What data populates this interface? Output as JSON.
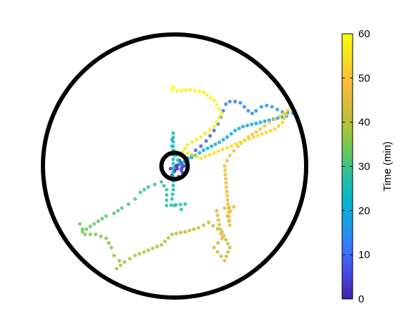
{
  "chart_data": {
    "type": "scatter",
    "title": "",
    "colorbar": {
      "label": "Time (min)",
      "range": [
        0,
        60
      ],
      "ticks": [
        0,
        10,
        20,
        30,
        40,
        50,
        60
      ],
      "colormap": [
        "#3e26a8",
        "#4744e0",
        "#3d74fb",
        "#1f9be9",
        "#04b5d0",
        "#23bfa6",
        "#5ec962",
        "#a4c43a",
        "#d7b93a",
        "#fbbe3c",
        "#f6e11b",
        "#f9fb0e"
      ]
    },
    "arena": {
      "outer_radius": 1.0,
      "inner_radius": 0.1,
      "inner_center": [
        0,
        0
      ]
    },
    "trajectory": [
      [
        0.02,
        -0.02,
        0
      ],
      [
        0.03,
        0.01,
        0.5
      ],
      [
        0.0,
        -0.04,
        1
      ],
      [
        -0.03,
        -0.02,
        1.5
      ],
      [
        0.05,
        0.02,
        2
      ],
      [
        0.06,
        -0.05,
        2.5
      ],
      [
        0.03,
        -0.08,
        3
      ],
      [
        0.0,
        -0.1,
        3.5
      ],
      [
        -0.02,
        -0.07,
        4
      ],
      [
        0.04,
        0.04,
        4.5
      ],
      [
        0.07,
        0.0,
        5
      ],
      [
        0.05,
        -0.03,
        5.5
      ],
      [
        0.08,
        0.03,
        6
      ],
      [
        0.1,
        0.06,
        6.5
      ],
      [
        0.13,
        0.08,
        7
      ],
      [
        0.16,
        0.12,
        7.5
      ],
      [
        0.2,
        0.15,
        8
      ],
      [
        0.24,
        0.19,
        8.5
      ],
      [
        0.27,
        0.23,
        9
      ],
      [
        0.3,
        0.27,
        9.5
      ],
      [
        0.33,
        0.32,
        10
      ],
      [
        0.35,
        0.37,
        10.5
      ],
      [
        0.37,
        0.42,
        11
      ],
      [
        0.39,
        0.47,
        11.5
      ],
      [
        0.42,
        0.49,
        12
      ],
      [
        0.46,
        0.49,
        12.5
      ],
      [
        0.5,
        0.48,
        13
      ],
      [
        0.53,
        0.45,
        13.5
      ],
      [
        0.56,
        0.42,
        14
      ],
      [
        0.59,
        0.4,
        14.5
      ],
      [
        0.62,
        0.42,
        15
      ],
      [
        0.66,
        0.45,
        15.5
      ],
      [
        0.7,
        0.46,
        16
      ],
      [
        0.74,
        0.45,
        16.5
      ],
      [
        0.78,
        0.43,
        17
      ],
      [
        0.82,
        0.41,
        17.5
      ],
      [
        0.9,
        0.4,
        18
      ],
      [
        0.85,
        0.38,
        18.5
      ],
      [
        0.52,
        0.3,
        19
      ],
      [
        0.46,
        0.27,
        19.5
      ],
      [
        0.4,
        0.22,
        20
      ],
      [
        0.34,
        0.18,
        20.5
      ],
      [
        0.28,
        0.15,
        21
      ],
      [
        0.22,
        0.12,
        21.5
      ],
      [
        0.16,
        0.08,
        22
      ],
      [
        0.1,
        0.05,
        22.5
      ],
      [
        0.04,
        0.01,
        23
      ],
      [
        -0.02,
        0.15,
        23.5
      ],
      [
        -0.02,
        0.2,
        24
      ],
      [
        -0.01,
        0.25,
        24.5
      ],
      [
        -0.01,
        -0.18,
        25
      ],
      [
        -0.02,
        -0.25,
        25.5
      ],
      [
        0.0,
        -0.3,
        26
      ],
      [
        0.05,
        -0.33,
        26.5
      ],
      [
        0.08,
        -0.29,
        27
      ],
      [
        -0.06,
        -0.3,
        27.5
      ],
      [
        -0.06,
        -0.18,
        28
      ],
      [
        -0.1,
        -0.12,
        28.5
      ],
      [
        -0.15,
        -0.14,
        29
      ],
      [
        -0.2,
        -0.16,
        29.5
      ],
      [
        -0.26,
        -0.2,
        30
      ],
      [
        -0.3,
        -0.25,
        30.5
      ],
      [
        -0.35,
        -0.29,
        31
      ],
      [
        -0.4,
        -0.32,
        31.5
      ],
      [
        -0.46,
        -0.36,
        32
      ],
      [
        -0.52,
        -0.38,
        32.5
      ],
      [
        -0.58,
        -0.42,
        33
      ],
      [
        -0.64,
        -0.46,
        33.5
      ],
      [
        -0.7,
        -0.5,
        34
      ],
      [
        -0.72,
        -0.44,
        34.5
      ],
      [
        -0.68,
        -0.52,
        35
      ],
      [
        -0.6,
        -0.52,
        35.5
      ],
      [
        -0.52,
        -0.55,
        36
      ],
      [
        -0.48,
        -0.62,
        36.5
      ],
      [
        -0.46,
        -0.68,
        37
      ],
      [
        -0.42,
        -0.72,
        37.5
      ],
      [
        -0.44,
        -0.78,
        38
      ],
      [
        -0.38,
        -0.73,
        38.5
      ],
      [
        -0.3,
        -0.68,
        39
      ],
      [
        -0.2,
        -0.64,
        39.5
      ],
      [
        -0.1,
        -0.6,
        40
      ],
      [
        -0.02,
        -0.52,
        40.5
      ],
      [
        0.08,
        -0.5,
        41
      ],
      [
        0.18,
        -0.47,
        41.5
      ],
      [
        0.26,
        -0.43,
        42
      ],
      [
        0.36,
        -0.5,
        42.5
      ],
      [
        0.42,
        -0.62,
        43
      ],
      [
        0.38,
        -0.72,
        43.5
      ],
      [
        0.3,
        -0.62,
        44
      ],
      [
        0.36,
        -0.55,
        44.5
      ],
      [
        0.32,
        -0.34,
        45
      ],
      [
        0.38,
        -0.32,
        45.5
      ],
      [
        0.45,
        -0.31,
        46
      ],
      [
        0.4,
        -0.38,
        46.5
      ],
      [
        0.42,
        -0.45,
        47
      ],
      [
        0.38,
        0.0,
        47.5
      ],
      [
        0.42,
        0.08,
        48
      ],
      [
        0.48,
        0.15,
        48.5
      ],
      [
        0.56,
        0.22,
        49
      ],
      [
        0.65,
        0.28,
        49.5
      ],
      [
        0.72,
        0.33,
        50
      ],
      [
        0.8,
        0.38,
        50.5
      ],
      [
        0.86,
        0.42,
        51
      ],
      [
        0.82,
        0.33,
        51.5
      ],
      [
        0.76,
        0.28,
        52
      ],
      [
        0.6,
        0.22,
        52.5
      ],
      [
        0.5,
        0.18,
        53
      ],
      [
        0.4,
        0.14,
        53.5
      ],
      [
        0.3,
        0.1,
        54
      ],
      [
        0.2,
        0.06,
        54.5
      ],
      [
        0.1,
        0.1,
        55
      ],
      [
        0.04,
        0.08,
        55.5
      ],
      [
        0.1,
        0.16,
        56
      ],
      [
        0.2,
        0.22,
        56.5
      ],
      [
        0.3,
        0.3,
        57
      ],
      [
        0.36,
        0.4,
        57.5
      ],
      [
        0.3,
        0.5,
        58
      ],
      [
        0.22,
        0.56,
        58.5
      ],
      [
        0.12,
        0.58,
        59
      ],
      [
        0.02,
        0.57,
        59.3
      ],
      [
        -0.02,
        0.58,
        59.6
      ],
      [
        -0.01,
        0.6,
        60
      ]
    ]
  }
}
